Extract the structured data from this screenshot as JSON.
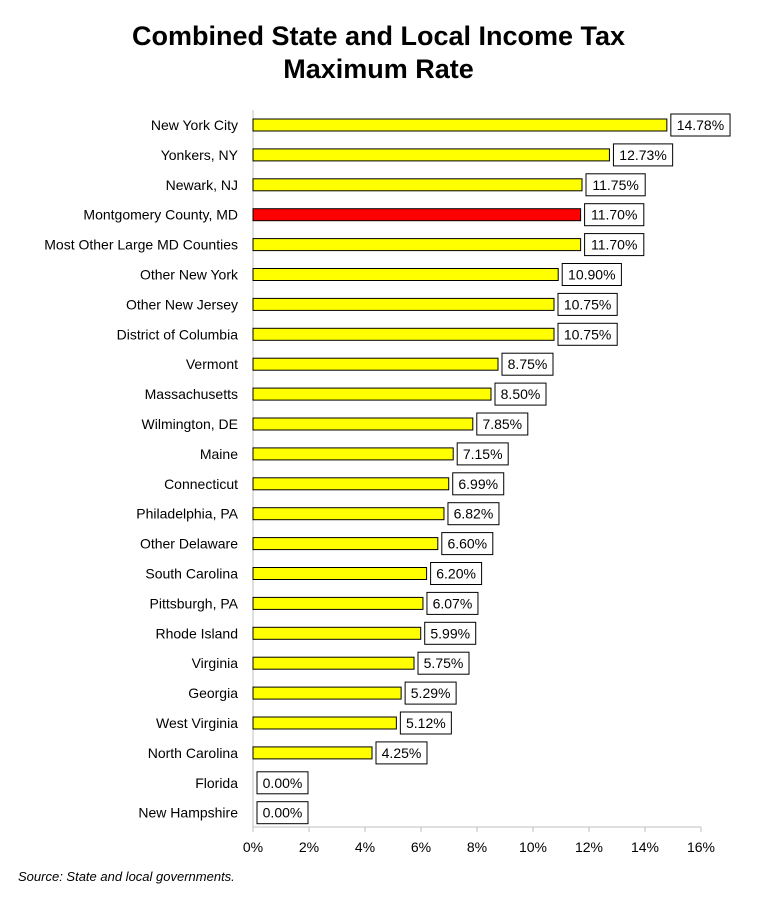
{
  "chart_data": {
    "type": "bar",
    "orientation": "horizontal",
    "title": "Combined State and Local Income Tax Maximum Rate",
    "title_lines": [
      "Combined State and Local Income Tax",
      "Maximum Rate"
    ],
    "categories": [
      "New York City",
      "Yonkers, NY",
      "Newark, NJ",
      "Montgomery County, MD",
      "Most Other Large MD Counties",
      "Other New York",
      "Other New Jersey",
      "District of Columbia",
      "Vermont",
      "Massachusetts",
      "Wilmington, DE",
      "Maine",
      "Connecticut",
      "Philadelphia, PA",
      "Other Delaware",
      "South Carolina",
      "Pittsburgh, PA",
      "Rhode Island",
      "Virginia",
      "Georgia",
      "West Virginia",
      "North Carolina",
      "Florida",
      "New Hampshire"
    ],
    "values": [
      14.78,
      12.73,
      11.75,
      11.7,
      11.7,
      10.9,
      10.75,
      10.75,
      8.75,
      8.5,
      7.85,
      7.15,
      6.99,
      6.82,
      6.6,
      6.2,
      6.07,
      5.99,
      5.75,
      5.29,
      5.12,
      4.25,
      0.0,
      0.0
    ],
    "data_labels": [
      "14.78%",
      "12.73%",
      "11.75%",
      "11.70%",
      "11.70%",
      "10.90%",
      "10.75%",
      "10.75%",
      "8.75%",
      "8.50%",
      "7.85%",
      "7.15%",
      "6.99%",
      "6.82%",
      "6.60%",
      "6.20%",
      "6.07%",
      "5.99%",
      "5.75%",
      "5.29%",
      "5.12%",
      "4.25%",
      "0.00%",
      "0.00%"
    ],
    "highlight_category": "Montgomery County, MD",
    "xlim": [
      0,
      16
    ],
    "xticks": [
      "0%",
      "2%",
      "4%",
      "6%",
      "8%",
      "10%",
      "12%",
      "14%",
      "16%"
    ],
    "xlabel": "",
    "ylabel": "",
    "grid": false,
    "colors": {
      "bar": "#ffff00",
      "highlight": "#ff0000",
      "outline": "#000000"
    }
  },
  "source_note": "Source: State and local governments."
}
